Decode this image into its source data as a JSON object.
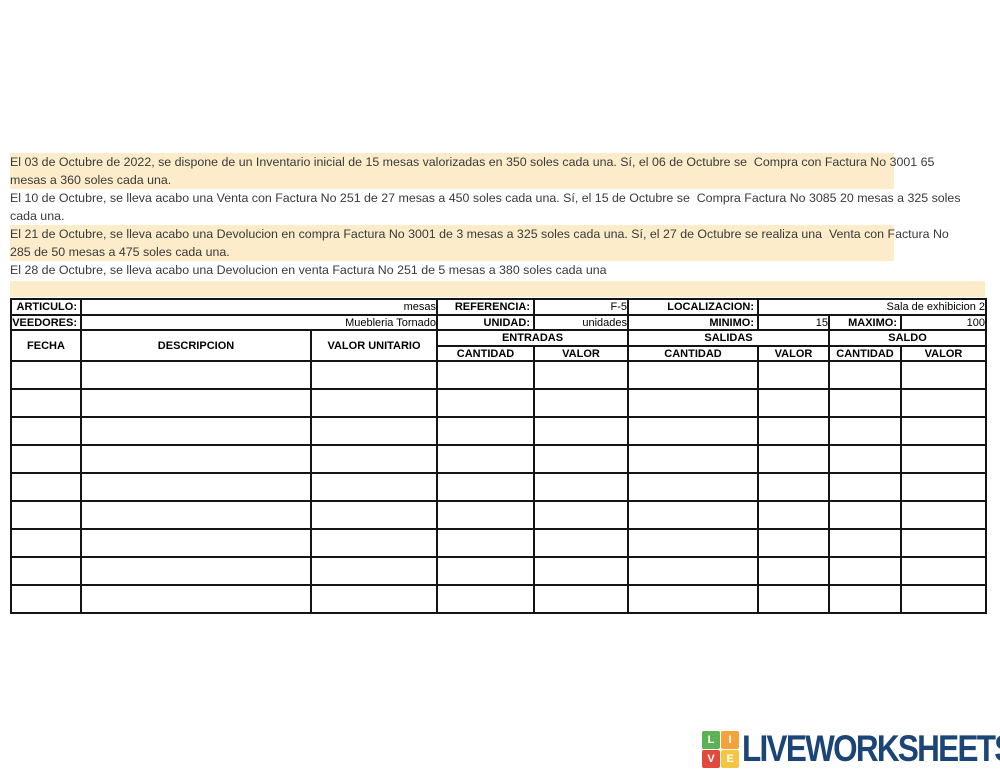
{
  "instructions": {
    "paragraphs": [
      {
        "highlight": true,
        "lines": [
          "El 03 de Octubre de 2022, se dispone de un Inventario inicial de 15 mesas valorizadas en 350 soles cada una. Sí, el 06 de Octubre se  Compra con Factura No 3001 65",
          "mesas a 360 soles cada una."
        ]
      },
      {
        "highlight": false,
        "lines": [
          "El 10 de Octubre, se lleva acabo una Venta con Factura No 251 de 27 mesas a 450 soles cada una. Sí, el 15 de Octubre se  Compra Factura No 3085 20 mesas a 325 soles",
          "cada una."
        ]
      },
      {
        "highlight": true,
        "lines": [
          "El 21 de Octubre, se lleva acabo una Devolucion en compra Factura No 3001 de 3 mesas a 325 soles cada una. Sí, el 27 de Octubre se realiza una  Venta con Factura No",
          "285 de 50 mesas a 475 soles cada una."
        ]
      },
      {
        "highlight": false,
        "lines": [
          "El 28 de Octubre, se lleva acabo una Devolucion en venta Factura No 251 de 5 mesas a 380 soles cada una"
        ]
      }
    ]
  },
  "table": {
    "info": {
      "articulo_label": "ARTICULO:",
      "articulo_value": "mesas",
      "referencia_label": "REFERENCIA:",
      "referencia_value": "F-5",
      "localizacion_label": "LOCALIZACION:",
      "localizacion_value": "Sala de exhibicion 2",
      "proveedores_label": "PROVEEDORES:",
      "proveedores_value": "Muebleria Tornado",
      "unidad_label": "UNIDAD:",
      "unidad_value": "unidades",
      "minimo_label": "MINIMO:",
      "minimo_value": "15",
      "maximo_label": "MAXIMO:",
      "maximo_value": "100"
    },
    "columns": {
      "fecha": "FECHA",
      "descripcion": "DESCRIPCION",
      "valor_unitario": "VALOR UNITARIO",
      "entradas": "ENTRADAS",
      "salidas": "SALIDAS",
      "saldo": "SALDO",
      "cantidad": "CANTIDAD",
      "valor": "VALOR"
    },
    "body": {
      "rows": 9,
      "cols": 9
    }
  },
  "logo": {
    "tiles": [
      {
        "letter": "L",
        "color": "#5cb254"
      },
      {
        "letter": "I",
        "color": "#f2a33c"
      },
      {
        "letter": "V",
        "color": "#e2493d"
      },
      {
        "letter": "E",
        "color": "#f6c643"
      }
    ],
    "text": "LIVEWORKSHEETS",
    "text_color": "#1b4577"
  },
  "colors": {
    "highlight": "#fcecca",
    "table_border": "#141414"
  }
}
